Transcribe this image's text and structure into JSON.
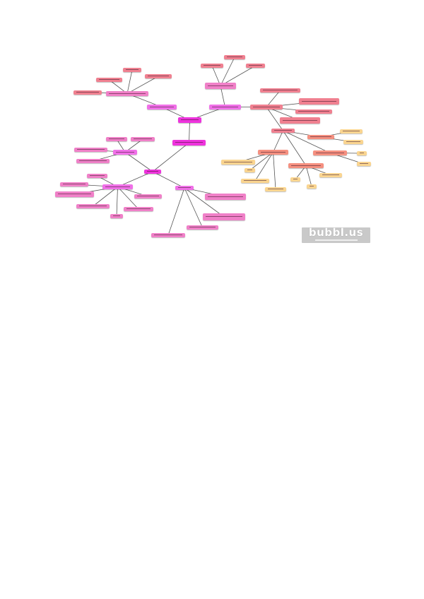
{
  "logo": {
    "text": "bubbl.us"
  },
  "colors": {
    "root": "#ee33dd",
    "branch": "#f070e8",
    "pink": "#f080c8",
    "salmon": "#f08090",
    "orange": "#f59080",
    "yellow": "#fad590",
    "line": "#555555"
  }
}
